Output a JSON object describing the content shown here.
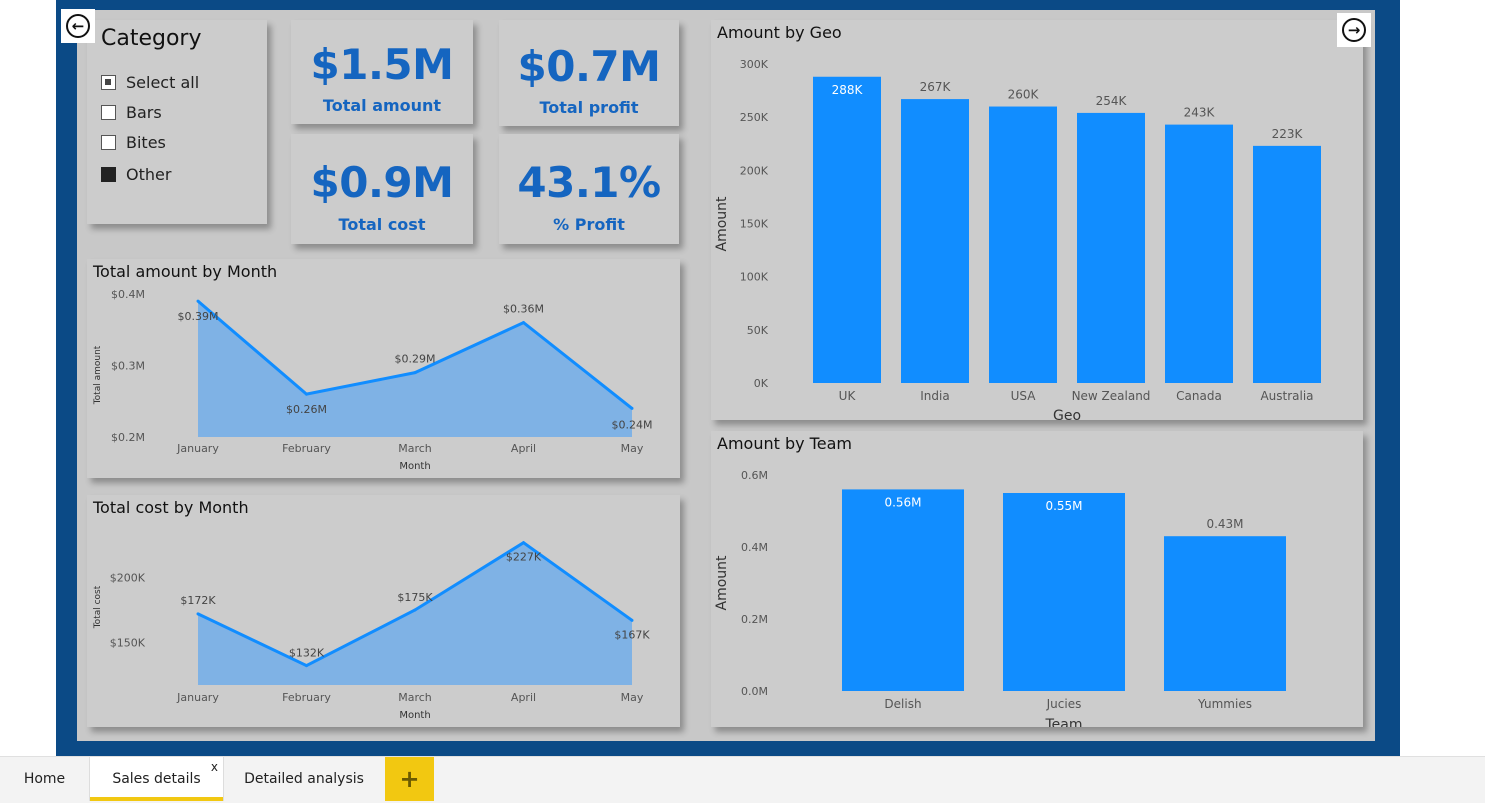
{
  "navigation": {
    "back_icon": "arrow-left-circle-icon",
    "forward_icon": "arrow-right-circle-icon",
    "back_glyph": "←",
    "forward_glyph": "→"
  },
  "slicer": {
    "title": "Category",
    "items": [
      {
        "label": "Select all",
        "state": "partial"
      },
      {
        "label": "Bars",
        "state": "unchecked"
      },
      {
        "label": "Bites",
        "state": "unchecked"
      },
      {
        "label": "Other",
        "state": "checked"
      }
    ]
  },
  "kpis": [
    {
      "value": "$1.5M",
      "label": "Total amount"
    },
    {
      "value": "$0.7M",
      "label": "Total profit"
    },
    {
      "value": "$0.9M",
      "label": "Total cost"
    },
    {
      "value": "43.1%",
      "label": "% Profit"
    }
  ],
  "colors": {
    "accent": "#1565c0",
    "bar": "#118dff",
    "area_fill": "#7fb2e5",
    "line": "#118dff",
    "canvas": "#0b4a86",
    "tab_accent": "#f2c811"
  },
  "chart_data": [
    {
      "id": "amount-by-month",
      "type": "area",
      "title": "Total amount by Month",
      "xlabel": "Month",
      "ylabel": "Total amount",
      "categories": [
        "January",
        "February",
        "March",
        "April",
        "May"
      ],
      "values": [
        0.39,
        0.26,
        0.29,
        0.36,
        0.24
      ],
      "data_labels": [
        "$0.39M",
        "$0.26M",
        "$0.29M",
        "$0.36M",
        "$0.24M"
      ],
      "yticks": [
        0.2,
        0.3,
        0.4
      ],
      "ytick_labels": [
        "$0.2M",
        "$0.3M",
        "$0.4M"
      ],
      "ylim": [
        0.2,
        0.4
      ]
    },
    {
      "id": "cost-by-month",
      "type": "area",
      "title": "Total cost by Month",
      "xlabel": "Month",
      "ylabel": "Total cost",
      "categories": [
        "January",
        "February",
        "March",
        "April",
        "May"
      ],
      "values": [
        172,
        132,
        175,
        227,
        167
      ],
      "data_labels": [
        "$172K",
        "$132K",
        "$175K",
        "$227K",
        "$167K"
      ],
      "yticks": [
        150,
        200
      ],
      "ytick_labels": [
        "$150K",
        "$200K"
      ],
      "ylim": [
        117,
        243
      ]
    },
    {
      "id": "amount-by-geo",
      "type": "bar",
      "title": "Amount by Geo",
      "xlabel": "Geo",
      "ylabel": "Amount",
      "categories": [
        "UK",
        "India",
        "USA",
        "New Zealand",
        "Canada",
        "Australia"
      ],
      "values": [
        288,
        267,
        260,
        254,
        243,
        223
      ],
      "data_labels": [
        "288K",
        "267K",
        "260K",
        "254K",
        "243K",
        "223K"
      ],
      "yticks": [
        0,
        50,
        100,
        150,
        200,
        250,
        300
      ],
      "ytick_labels": [
        "0K",
        "50K",
        "100K",
        "150K",
        "200K",
        "250K",
        "300K"
      ],
      "ylim": [
        0,
        300
      ]
    },
    {
      "id": "amount-by-team",
      "type": "bar",
      "title": "Amount by Team",
      "xlabel": "Team",
      "ylabel": "Amount",
      "categories": [
        "Delish",
        "Jucies",
        "Yummies"
      ],
      "values": [
        0.56,
        0.55,
        0.43
      ],
      "data_labels": [
        "0.56M",
        "0.55M",
        "0.43M"
      ],
      "yticks": [
        0,
        0.2,
        0.4,
        0.6
      ],
      "ytick_labels": [
        "0.0M",
        "0.2M",
        "0.4M",
        "0.6M"
      ],
      "ylim": [
        0,
        0.6
      ]
    }
  ],
  "tabs": [
    {
      "label": "Home"
    },
    {
      "label": "Sales details",
      "close": "x"
    },
    {
      "label": "Detailed analysis"
    }
  ],
  "add_tab": {
    "glyph": "+",
    "icon": "plus-icon"
  }
}
